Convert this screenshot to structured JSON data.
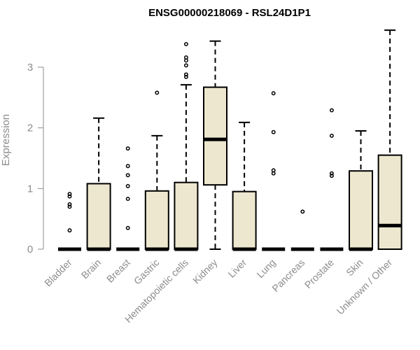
{
  "chart_data": {
    "type": "boxplot",
    "title": "ENSG00000218069 - RSL24D1P1",
    "xlabel": "",
    "ylabel": "Expression",
    "ylim": [
      0,
      3.6
    ],
    "yticks": [
      0,
      1,
      2,
      3
    ],
    "colors": {
      "box_fill": "#ede7cf",
      "stroke": "#000000",
      "axis": "#8c8c8c"
    },
    "categories": [
      "Bladder",
      "Brain",
      "Breast",
      "Gastric",
      "Hematopoietic cells",
      "Kidney",
      "Liver",
      "Lung",
      "Pancreas",
      "Prostate",
      "Skin",
      "Unknown / Other"
    ],
    "boxes": [
      {
        "category": "Bladder",
        "q1": 0,
        "median": 0,
        "q3": 0,
        "whisker_low": 0,
        "whisker_high": 0,
        "outliers": [
          0.91,
          0.87,
          0.74,
          0.7,
          0.31
        ]
      },
      {
        "category": "Brain",
        "q1": 0,
        "median": 0,
        "q3": 1.08,
        "whisker_low": 0,
        "whisker_high": 2.16,
        "outliers": []
      },
      {
        "category": "Breast",
        "q1": 0,
        "median": 0,
        "q3": 0,
        "whisker_low": 0,
        "whisker_high": 0,
        "outliers": [
          1.66,
          1.37,
          1.22,
          1.04,
          0.83,
          0.35
        ]
      },
      {
        "category": "Gastric",
        "q1": 0,
        "median": 0,
        "q3": 0.96,
        "whisker_low": 0,
        "whisker_high": 1.87,
        "outliers": [
          2.58
        ]
      },
      {
        "category": "Hematopoietic cells",
        "q1": 0,
        "median": 0,
        "q3": 1.1,
        "whisker_low": 0,
        "whisker_high": 2.71,
        "outliers": [
          3.38,
          3.16,
          3.11,
          3.03,
          2.88,
          2.84
        ]
      },
      {
        "category": "Kidney",
        "q1": 1.06,
        "median": 1.81,
        "q3": 2.67,
        "whisker_low": 0,
        "whisker_high": 3.43,
        "outliers": []
      },
      {
        "category": "Liver",
        "q1": 0,
        "median": 0,
        "q3": 0.95,
        "whisker_low": 0,
        "whisker_high": 2.09,
        "outliers": []
      },
      {
        "category": "Lung",
        "q1": 0,
        "median": 0,
        "q3": 0,
        "whisker_low": 0,
        "whisker_high": 0,
        "outliers": [
          2.57,
          1.93,
          1.3,
          1.25
        ]
      },
      {
        "category": "Pancreas",
        "q1": 0,
        "median": 0,
        "q3": 0,
        "whisker_low": 0,
        "whisker_high": 0,
        "outliers": [
          0.62
        ]
      },
      {
        "category": "Prostate",
        "q1": 0,
        "median": 0,
        "q3": 0,
        "whisker_low": 0,
        "whisker_high": 0,
        "outliers": [
          2.29,
          1.87,
          1.25,
          1.21
        ]
      },
      {
        "category": "Skin",
        "q1": 0,
        "median": 0,
        "q3": 1.29,
        "whisker_low": 0,
        "whisker_high": 1.95,
        "outliers": []
      },
      {
        "category": "Unknown / Other",
        "q1": 0,
        "median": 0.39,
        "q3": 1.55,
        "whisker_low": 0,
        "whisker_high": 3.61,
        "outliers": []
      }
    ]
  }
}
